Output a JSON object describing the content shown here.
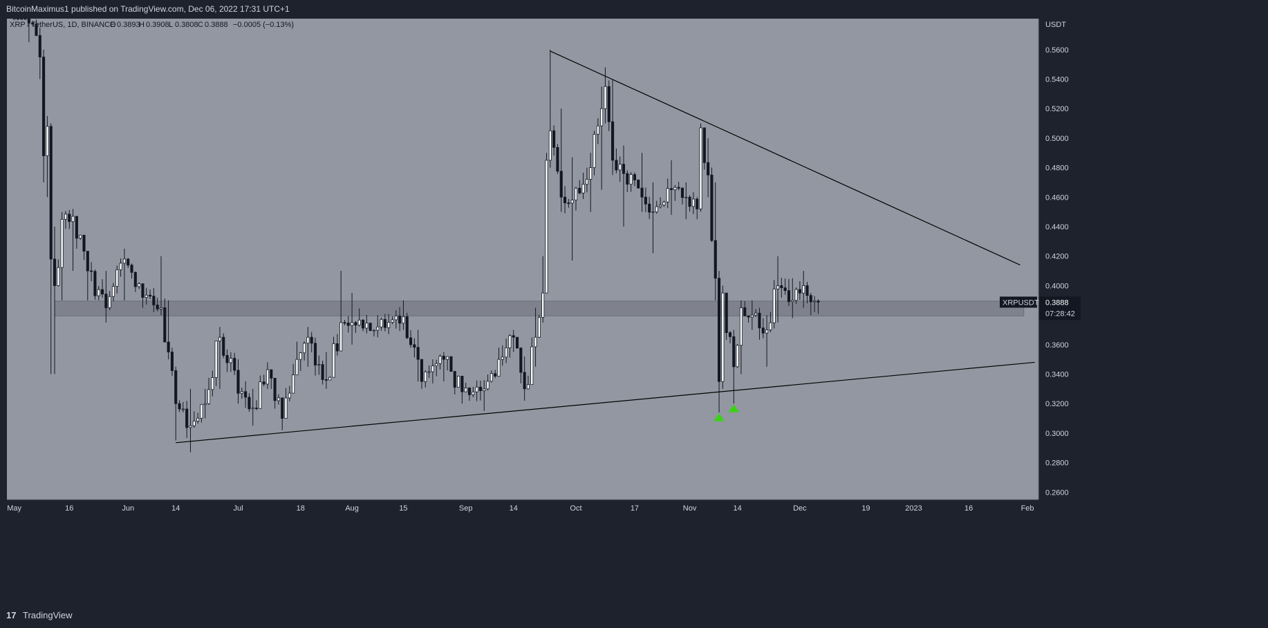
{
  "header": {
    "publisher_text": "BitcoinMaximus1 published on TradingView.com, Dec 06, 2022 17:31 UTC+1"
  },
  "footer": {
    "logo_glyph": "17",
    "brand": "TradingView"
  },
  "colors": {
    "plot_bg": "#9397a1",
    "frame_bg": "#1e222d",
    "axis_text": "#d1d4dc",
    "candle_up": "#ffffff",
    "candle_down": "#131722",
    "zone_fill": "#787b86",
    "marker": "#39d315",
    "price_tag_bg": "#131722"
  },
  "chart_data": {
    "type": "candlestick",
    "symbol_info": {
      "symbol": "XRP / TetherUS, 1D, BINANCE",
      "o_label": "O",
      "o_value": "0.3893",
      "h_label": "H",
      "h_value": "0.3908",
      "l_label": "L",
      "l_value": "0.3808",
      "c_label": "C",
      "c_value": "0.3888",
      "change": "−0.0005 (−0.13%)"
    },
    "currency_label": "USDT",
    "ylim": [
      0.255,
      0.581
    ],
    "y_ticks": [
      {
        "value": 0.26,
        "label": "0.2600"
      },
      {
        "value": 0.28,
        "label": "0.2800"
      },
      {
        "value": 0.3,
        "label": "0.3000"
      },
      {
        "value": 0.32,
        "label": "0.3200"
      },
      {
        "value": 0.34,
        "label": "0.3400"
      },
      {
        "value": 0.36,
        "label": "0.3600"
      },
      {
        "value": 0.38,
        "label": "0.3800"
      },
      {
        "value": 0.4,
        "label": "0.4000"
      },
      {
        "value": 0.42,
        "label": "0.4200"
      },
      {
        "value": 0.44,
        "label": "0.4400"
      },
      {
        "value": 0.46,
        "label": "0.4600"
      },
      {
        "value": 0.48,
        "label": "0.4800"
      },
      {
        "value": 0.5,
        "label": "0.5000"
      },
      {
        "value": 0.52,
        "label": "0.5200"
      },
      {
        "value": 0.54,
        "label": "0.5400"
      },
      {
        "value": 0.56,
        "label": "0.5600"
      }
    ],
    "x_range": [
      "2022-04-29",
      "2023-02-04"
    ],
    "x_ticks": [
      {
        "date": "2022-05-01",
        "label": "May"
      },
      {
        "date": "2022-05-16",
        "label": "16"
      },
      {
        "date": "2022-06-01",
        "label": "Jun"
      },
      {
        "date": "2022-06-14",
        "label": "14"
      },
      {
        "date": "2022-07-01",
        "label": "Jul"
      },
      {
        "date": "2022-07-18",
        "label": "18"
      },
      {
        "date": "2022-08-01",
        "label": "Aug"
      },
      {
        "date": "2022-08-15",
        "label": "15"
      },
      {
        "date": "2022-09-01",
        "label": "Sep"
      },
      {
        "date": "2022-09-14",
        "label": "14"
      },
      {
        "date": "2022-10-01",
        "label": "Oct"
      },
      {
        "date": "2022-10-17",
        "label": "17"
      },
      {
        "date": "2022-11-01",
        "label": "Nov"
      },
      {
        "date": "2022-11-14",
        "label": "14"
      },
      {
        "date": "2022-12-01",
        "label": "Dec"
      },
      {
        "date": "2022-12-19",
        "label": "19"
      },
      {
        "date": "2023-01-01",
        "label": "2023"
      },
      {
        "date": "2023-01-16",
        "label": "16"
      },
      {
        "date": "2023-02-01",
        "label": "Feb"
      }
    ],
    "candle_anchors": [
      {
        "date": "2022-05-01",
        "close": 0.615,
        "low": 0.6,
        "high": 0.63
      },
      {
        "date": "2022-05-05",
        "close": 0.578,
        "low": 0.565,
        "high": 0.595
      },
      {
        "date": "2022-05-08",
        "close": 0.555,
        "low": 0.54,
        "high": 0.575
      },
      {
        "date": "2022-05-09",
        "close": 0.488,
        "low": 0.47,
        "high": 0.56
      },
      {
        "date": "2022-05-10",
        "close": 0.508,
        "low": 0.46,
        "high": 0.515
      },
      {
        "date": "2022-05-11",
        "close": 0.418,
        "low": 0.34,
        "high": 0.51
      },
      {
        "date": "2022-05-12",
        "close": 0.4,
        "low": 0.34,
        "high": 0.44
      },
      {
        "date": "2022-05-14",
        "close": 0.445,
        "low": 0.39,
        "high": 0.45
      },
      {
        "date": "2022-05-17",
        "close": 0.447,
        "low": 0.41,
        "high": 0.452
      },
      {
        "date": "2022-05-21",
        "close": 0.41,
        "low": 0.39,
        "high": 0.42
      },
      {
        "date": "2022-05-26",
        "close": 0.385,
        "low": 0.375,
        "high": 0.41
      },
      {
        "date": "2022-05-31",
        "close": 0.418,
        "low": 0.39,
        "high": 0.425
      },
      {
        "date": "2022-06-05",
        "close": 0.392,
        "low": 0.385,
        "high": 0.4
      },
      {
        "date": "2022-06-10",
        "close": 0.385,
        "low": 0.38,
        "high": 0.42
      },
      {
        "date": "2022-06-12",
        "close": 0.355,
        "low": 0.35,
        "high": 0.39
      },
      {
        "date": "2022-06-14",
        "close": 0.32,
        "low": 0.295,
        "high": 0.345
      },
      {
        "date": "2022-06-18",
        "close": 0.305,
        "low": 0.287,
        "high": 0.33
      },
      {
        "date": "2022-06-22",
        "close": 0.32,
        "low": 0.31,
        "high": 0.33
      },
      {
        "date": "2022-06-26",
        "close": 0.365,
        "low": 0.33,
        "high": 0.372
      },
      {
        "date": "2022-07-01",
        "close": 0.327,
        "low": 0.32,
        "high": 0.35
      },
      {
        "date": "2022-07-05",
        "close": 0.317,
        "low": 0.305,
        "high": 0.33
      },
      {
        "date": "2022-07-09",
        "close": 0.343,
        "low": 0.33,
        "high": 0.348
      },
      {
        "date": "2022-07-13",
        "close": 0.31,
        "low": 0.302,
        "high": 0.32
      },
      {
        "date": "2022-07-17",
        "close": 0.35,
        "low": 0.34,
        "high": 0.362
      },
      {
        "date": "2022-07-20",
        "close": 0.365,
        "low": 0.345,
        "high": 0.372
      },
      {
        "date": "2022-07-25",
        "close": 0.336,
        "low": 0.33,
        "high": 0.355
      },
      {
        "date": "2022-07-29",
        "close": 0.375,
        "low": 0.36,
        "high": 0.41
      },
      {
        "date": "2022-08-01",
        "close": 0.375,
        "low": 0.36,
        "high": 0.395
      },
      {
        "date": "2022-08-08",
        "close": 0.372,
        "low": 0.365,
        "high": 0.38
      },
      {
        "date": "2022-08-15",
        "close": 0.379,
        "low": 0.37,
        "high": 0.39
      },
      {
        "date": "2022-08-19",
        "close": 0.35,
        "low": 0.335,
        "high": 0.37
      },
      {
        "date": "2022-08-20",
        "close": 0.335,
        "low": 0.33,
        "high": 0.345
      },
      {
        "date": "2022-08-26",
        "close": 0.35,
        "low": 0.335,
        "high": 0.355
      },
      {
        "date": "2022-08-31",
        "close": 0.328,
        "low": 0.32,
        "high": 0.335
      },
      {
        "date": "2022-09-06",
        "close": 0.33,
        "low": 0.315,
        "high": 0.336
      },
      {
        "date": "2022-09-10",
        "close": 0.35,
        "low": 0.34,
        "high": 0.358
      },
      {
        "date": "2022-09-14",
        "close": 0.365,
        "low": 0.355,
        "high": 0.37
      },
      {
        "date": "2022-09-17",
        "close": 0.33,
        "low": 0.322,
        "high": 0.352
      },
      {
        "date": "2022-09-20",
        "close": 0.365,
        "low": 0.345,
        "high": 0.385
      },
      {
        "date": "2022-09-22",
        "close": 0.395,
        "low": 0.375,
        "high": 0.42
      },
      {
        "date": "2022-09-23",
        "close": 0.485,
        "low": 0.395,
        "high": 0.49
      },
      {
        "date": "2022-09-24",
        "close": 0.505,
        "low": 0.48,
        "high": 0.56
      },
      {
        "date": "2022-09-27",
        "close": 0.46,
        "low": 0.45,
        "high": 0.52
      },
      {
        "date": "2022-09-30",
        "close": 0.458,
        "low": 0.417,
        "high": 0.487
      },
      {
        "date": "2022-10-05",
        "close": 0.48,
        "low": 0.45,
        "high": 0.49
      },
      {
        "date": "2022-10-08",
        "close": 0.52,
        "low": 0.465,
        "high": 0.535
      },
      {
        "date": "2022-10-09",
        "close": 0.535,
        "low": 0.51,
        "high": 0.548
      },
      {
        "date": "2022-10-11",
        "close": 0.485,
        "low": 0.475,
        "high": 0.54
      },
      {
        "date": "2022-10-14",
        "close": 0.476,
        "low": 0.44,
        "high": 0.495
      },
      {
        "date": "2022-10-19",
        "close": 0.46,
        "low": 0.45,
        "high": 0.49
      },
      {
        "date": "2022-10-22",
        "close": 0.45,
        "low": 0.422,
        "high": 0.47
      },
      {
        "date": "2022-10-27",
        "close": 0.465,
        "low": 0.448,
        "high": 0.485
      },
      {
        "date": "2022-10-31",
        "close": 0.46,
        "low": 0.445,
        "high": 0.47
      },
      {
        "date": "2022-11-03",
        "close": 0.452,
        "low": 0.445,
        "high": 0.46
      },
      {
        "date": "2022-11-04",
        "close": 0.507,
        "low": 0.45,
        "high": 0.51
      },
      {
        "date": "2022-11-06",
        "close": 0.475,
        "low": 0.46,
        "high": 0.5
      },
      {
        "date": "2022-11-08",
        "close": 0.405,
        "low": 0.39,
        "high": 0.47
      },
      {
        "date": "2022-11-09",
        "close": 0.335,
        "low": 0.314,
        "high": 0.41
      },
      {
        "date": "2022-11-10",
        "close": 0.395,
        "low": 0.33,
        "high": 0.4
      },
      {
        "date": "2022-11-13",
        "close": 0.345,
        "low": 0.32,
        "high": 0.37
      },
      {
        "date": "2022-11-15",
        "close": 0.385,
        "low": 0.34,
        "high": 0.39
      },
      {
        "date": "2022-11-18",
        "close": 0.38,
        "low": 0.37,
        "high": 0.39
      },
      {
        "date": "2022-11-22",
        "close": 0.37,
        "low": 0.345,
        "high": 0.38
      },
      {
        "date": "2022-11-25",
        "close": 0.4,
        "low": 0.375,
        "high": 0.42
      },
      {
        "date": "2022-11-29",
        "close": 0.39,
        "low": 0.378,
        "high": 0.405
      },
      {
        "date": "2022-12-02",
        "close": 0.4,
        "low": 0.385,
        "high": 0.41
      },
      {
        "date": "2022-12-04",
        "close": 0.389,
        "low": 0.38,
        "high": 0.395
      },
      {
        "date": "2022-12-06",
        "close": 0.3888,
        "low": 0.3808,
        "high": 0.3908
      }
    ],
    "annotations": {
      "horizontal_zone": {
        "from_date": "2022-05-12",
        "to_date": "2023-01-31",
        "low": 0.3795,
        "high": 0.3895
      },
      "descending_trendline": {
        "start": {
          "date": "2022-09-24",
          "price": 0.559
        },
        "end": {
          "date": "2023-01-30",
          "price": 0.414
        }
      },
      "ascending_trendline": {
        "start": {
          "date": "2022-06-14",
          "price": 0.2935
        },
        "end": {
          "date": "2023-02-03",
          "price": 0.348
        }
      },
      "up_markers": [
        {
          "date": "2022-11-09",
          "price": 0.311
        },
        {
          "date": "2022-11-13",
          "price": 0.317
        }
      ]
    },
    "price_tag": {
      "symbol": "XRPUSDT",
      "value": 0.3888,
      "value_label": "0.3888",
      "countdown": "07:28:42"
    }
  }
}
